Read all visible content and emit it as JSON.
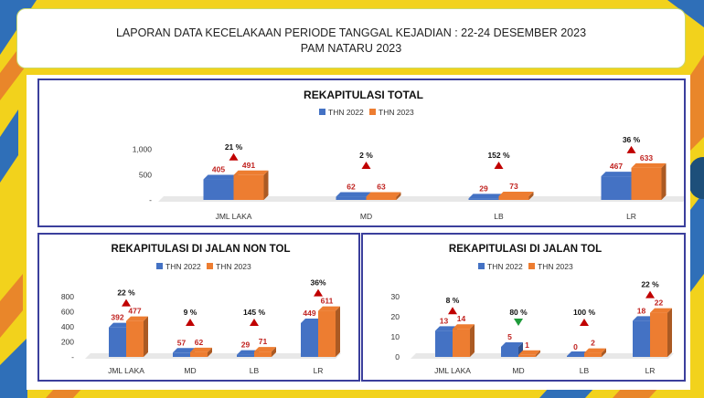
{
  "header": {
    "line1": "LAPORAN DATA KECELAKAAN PERIODE TANGGAL KEJADIAN : 22-24 DESEMBER 2023",
    "line2": "PAM NATARU 2023"
  },
  "colors": {
    "series_2022": "#4472c4",
    "series_2023": "#ed7d31",
    "up": "#c00000",
    "down": "#1e9a3a",
    "border": "#3b3f9c"
  },
  "chart_data": [
    {
      "type": "bar",
      "title": "REKAPITULASI TOTAL",
      "categories": [
        "JML LAKA",
        "MD",
        "LB",
        "LR"
      ],
      "series": [
        {
          "name": "THN 2022",
          "values": [
            405,
            62,
            29,
            467
          ]
        },
        {
          "name": "THN 2023",
          "values": [
            491,
            63,
            73,
            633
          ]
        }
      ],
      "value_labels": [
        [
          "405",
          "62",
          "29",
          "467"
        ],
        [
          "491",
          "63",
          "73",
          "633"
        ]
      ],
      "change_labels": [
        "21 %",
        "2 %",
        "152 %",
        "36 %"
      ],
      "change_direction": [
        "up",
        "up",
        "up",
        "up"
      ],
      "yticks": [
        "-",
        "500",
        "1,000"
      ],
      "ytick_values": [
        0,
        500,
        1000
      ],
      "ylim": [
        0,
        1100
      ],
      "legend": "top-center"
    },
    {
      "type": "bar",
      "title": "REKAPITULASI DI JALAN NON TOL",
      "categories": [
        "JML LAKA",
        "MD",
        "LB",
        "LR"
      ],
      "series": [
        {
          "name": "THN 2022",
          "values": [
            392,
            57,
            29,
            449
          ]
        },
        {
          "name": "THN 2023",
          "values": [
            477,
            62,
            71,
            611
          ]
        }
      ],
      "value_labels": [
        [
          "392",
          "57",
          "29",
          "449"
        ],
        [
          "477",
          "62",
          "71",
          "611"
        ]
      ],
      "change_labels": [
        "22 %",
        "9 %",
        "145 %",
        "36%"
      ],
      "change_direction": [
        "up",
        "up",
        "up",
        "up"
      ],
      "yticks": [
        "-",
        "200",
        "400",
        "600",
        "800"
      ],
      "ytick_values": [
        0,
        200,
        400,
        600,
        800
      ],
      "ylim": [
        0,
        800
      ],
      "legend": "top-center"
    },
    {
      "type": "bar",
      "title": "REKAPITULASI DI JALAN TOL",
      "categories": [
        "JML LAKA",
        "MD",
        "LB",
        "LR"
      ],
      "series": [
        {
          "name": "THN 2022",
          "values": [
            13,
            5,
            0,
            18
          ]
        },
        {
          "name": "THN 2023",
          "values": [
            14,
            1,
            2,
            22
          ]
        }
      ],
      "value_labels": [
        [
          "13",
          "5",
          "0",
          "18"
        ],
        [
          "14",
          "1",
          "2",
          "22"
        ]
      ],
      "change_labels": [
        "8 %",
        "80 %",
        "100 %",
        "22 %"
      ],
      "change_direction": [
        "up",
        "down",
        "up",
        "up"
      ],
      "yticks": [
        "0",
        "10",
        "20",
        "30"
      ],
      "ytick_values": [
        0,
        10,
        20,
        30
      ],
      "ylim": [
        0,
        30
      ],
      "legend": "top-center"
    }
  ]
}
